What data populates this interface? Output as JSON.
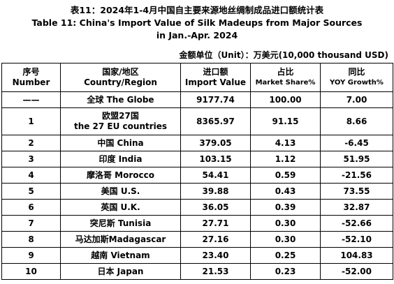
{
  "header": {
    "title_cn": "表11：2024年1-4月中国自主要来源地丝绸制成品进口额统计表",
    "title_en": [
      "Table 11: China's Import Value of Silk Madeups from Major Sources",
      "in Jan.-Apr. 2024"
    ],
    "unit": "金额单位（Unit）：万美元(10,000 thousand USD)"
  },
  "table": {
    "columns": [
      [
        "序号",
        "Number"
      ],
      [
        "国家/地区",
        "Country/Region"
      ],
      [
        "进口额",
        "Import Value"
      ],
      [
        "占比",
        "Market Share%"
      ],
      [
        "同比",
        "YOY Growth%"
      ]
    ],
    "rows": [
      [
        "——",
        [
          "全球 The Globe"
        ],
        "9177.74",
        "100.00",
        "7.00"
      ],
      [
        "1",
        [
          "欧盟27国",
          "the 27 EU countries"
        ],
        "8365.97",
        "91.15",
        "8.66"
      ],
      [
        "2",
        [
          "中国 China"
        ],
        "379.05",
        "4.13",
        "-6.45"
      ],
      [
        "3",
        [
          "印度 India"
        ],
        "103.15",
        "1.12",
        "51.95"
      ],
      [
        "4",
        [
          "摩洛哥 Morocco"
        ],
        "54.41",
        "0.59",
        "-21.56"
      ],
      [
        "5",
        [
          "美国 U.S."
        ],
        "39.88",
        "0.43",
        "73.55"
      ],
      [
        "6",
        [
          "英国 U.K."
        ],
        "36.05",
        "0.39",
        "32.87"
      ],
      [
        "7",
        [
          "突尼斯 Tunisia"
        ],
        "27.71",
        "0.30",
        "-52.66"
      ],
      [
        "8",
        [
          "马达加斯Madagascar"
        ],
        "27.16",
        "0.30",
        "-52.10"
      ],
      [
        "9",
        [
          "越南 Vietnam"
        ],
        "23.40",
        "0.25",
        "104.83"
      ],
      [
        "10",
        [
          "日本 Japan"
        ],
        "21.53",
        "0.23",
        "-52.00"
      ]
    ]
  }
}
